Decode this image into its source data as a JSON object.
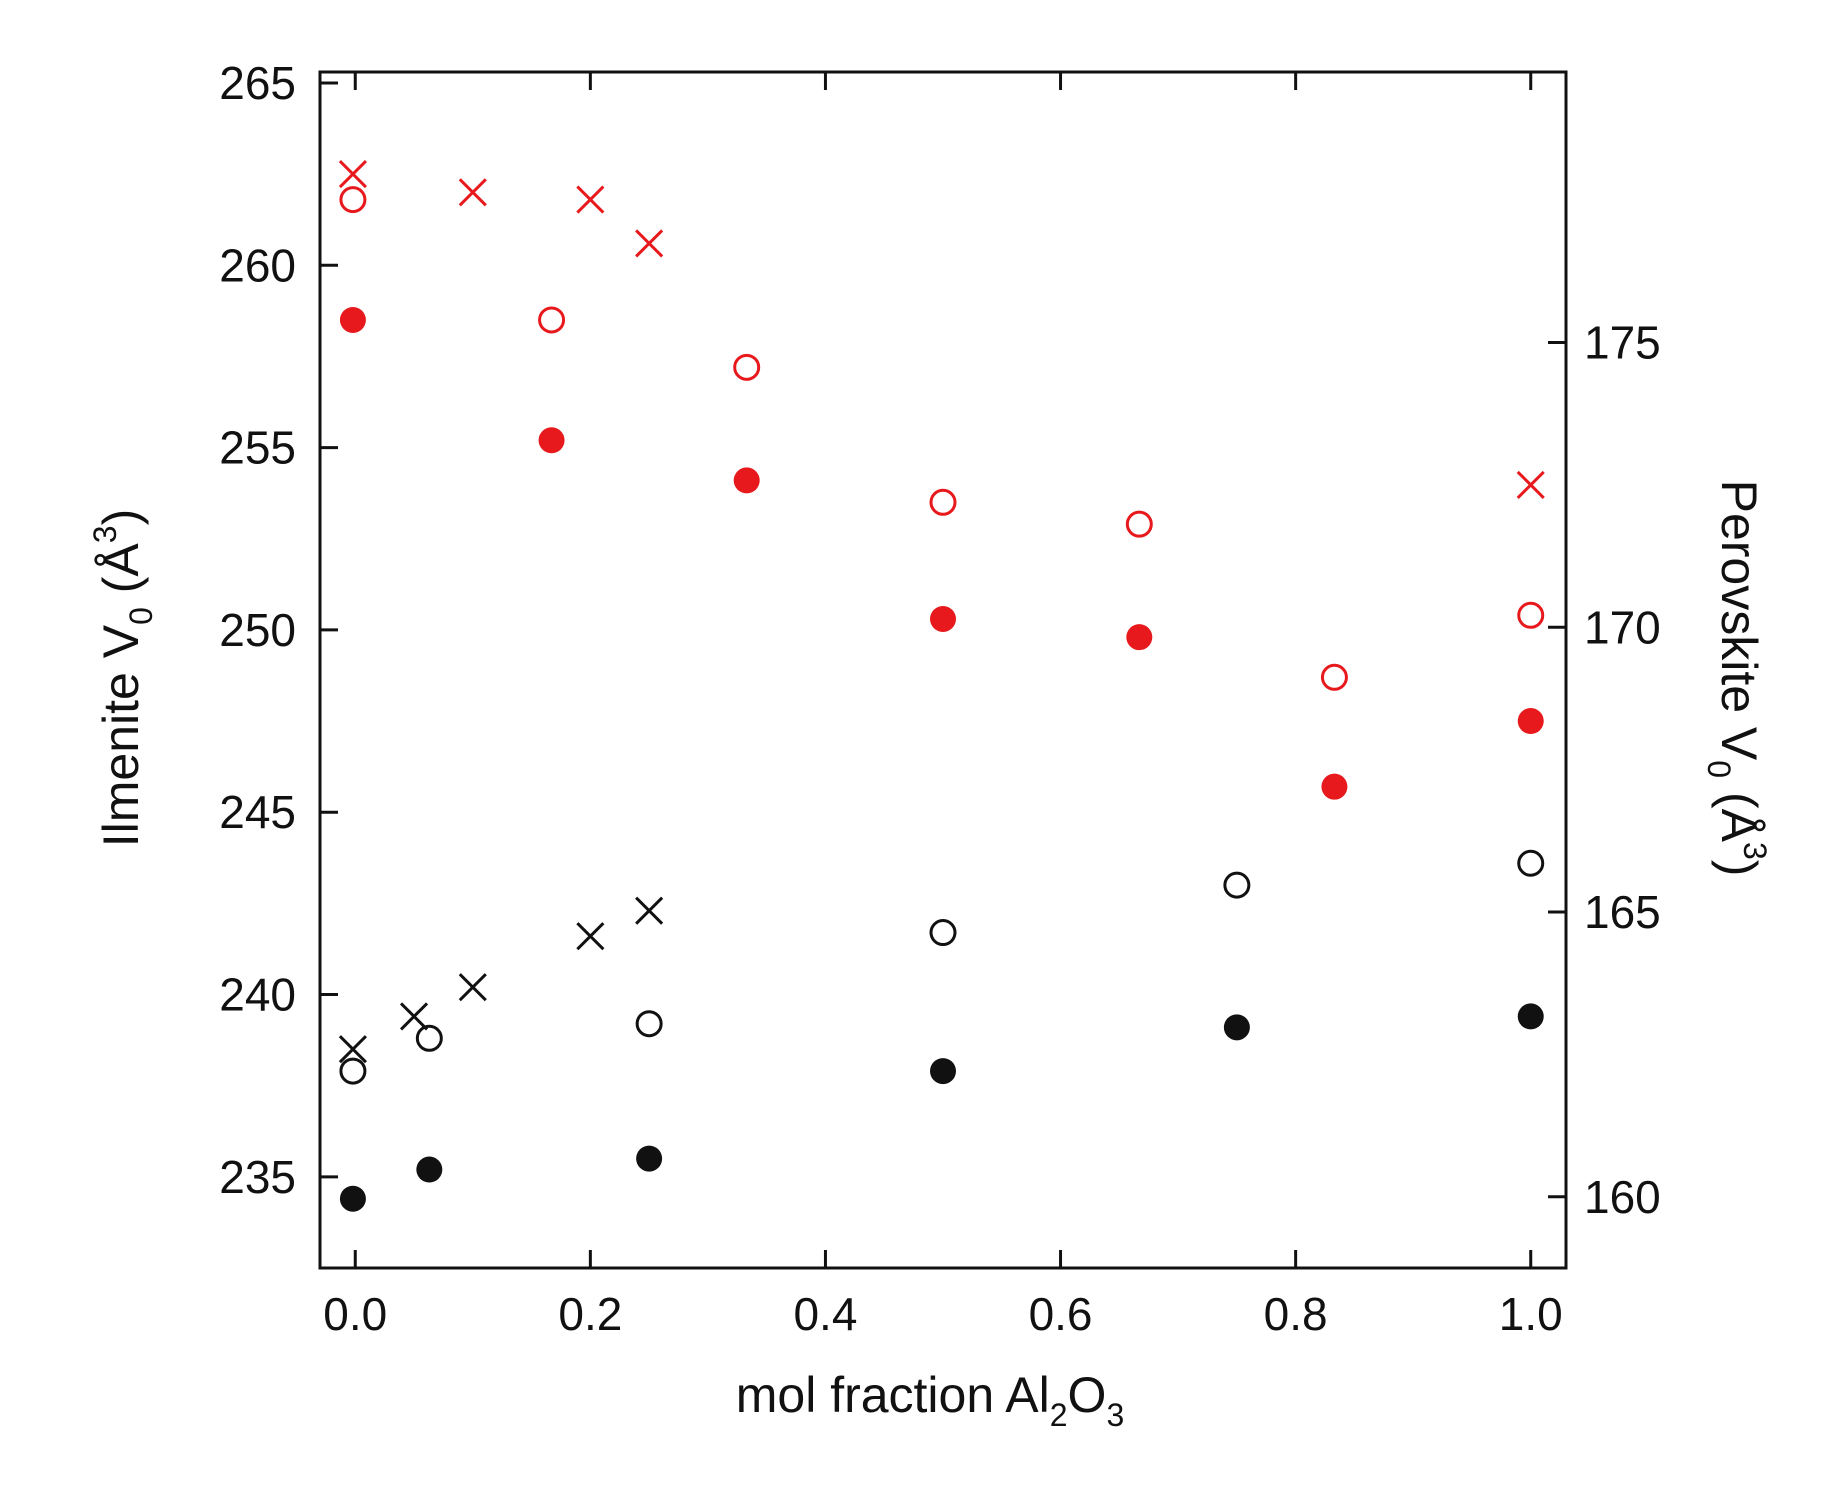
{
  "chart_data": {
    "type": "scatter",
    "x_axis": {
      "label": "mol fraction Al2O3",
      "label_parts": [
        "mol fraction Al",
        "2",
        "O",
        "3"
      ],
      "range": [
        -0.03,
        1.03
      ],
      "ticks": [
        0.0,
        0.2,
        0.4,
        0.6,
        0.8,
        1.0
      ],
      "tick_labels": [
        "0.0",
        "0.2",
        "0.4",
        "0.6",
        "0.8",
        "1.0"
      ]
    },
    "y_axis_left": {
      "label": "Ilmenite V0 (Å3)",
      "label_parts": [
        "Ilmenite V",
        "0",
        " (Å",
        "3",
        ")"
      ],
      "range": [
        232.5,
        265.3
      ],
      "ticks": [
        235,
        240,
        245,
        250,
        255,
        260,
        265
      ],
      "tick_labels": [
        "235",
        "240",
        "245",
        "250",
        "255",
        "260",
        "265"
      ]
    },
    "y_axis_right": {
      "label": "Perovskite V0 (Å3)",
      "label_parts": [
        "Perovskite V",
        "0",
        " (Å",
        "3",
        ")"
      ],
      "range": [
        158.75,
        179.75
      ],
      "ticks": [
        160,
        165,
        170,
        175
      ],
      "tick_labels": [
        "160",
        "165",
        "170",
        "175"
      ]
    },
    "grid": false,
    "series": [
      {
        "axis": "left",
        "color": "#e8191c",
        "marker": "cross",
        "points": [
          [
            -0.002,
            262.5
          ],
          [
            0.1,
            262.0
          ],
          [
            0.2,
            261.8
          ],
          [
            0.25,
            260.6
          ]
        ]
      },
      {
        "axis": "left",
        "color": "#e8191c",
        "marker": "open-circle",
        "points": [
          [
            -0.002,
            261.8
          ],
          [
            0.167,
            258.5
          ],
          [
            0.333,
            257.2
          ],
          [
            0.5,
            253.5
          ],
          [
            0.667,
            252.9
          ],
          [
            0.833,
            248.7
          ],
          [
            1.0,
            250.4
          ]
        ]
      },
      {
        "axis": "left",
        "color": "#e8191c",
        "marker": "filled-circle",
        "points": [
          [
            -0.002,
            258.5
          ],
          [
            0.167,
            255.2
          ],
          [
            0.333,
            254.1
          ],
          [
            0.5,
            250.3
          ],
          [
            0.667,
            249.8
          ],
          [
            0.833,
            245.7
          ],
          [
            1.0,
            247.5
          ]
        ]
      },
      {
        "axis": "right",
        "color": "#e8191c",
        "marker": "cross",
        "points": [
          [
            1.0,
            172.5
          ]
        ]
      },
      {
        "axis": "left",
        "color": "#111111",
        "marker": "cross",
        "points": [
          [
            -0.002,
            238.5
          ],
          [
            0.05,
            239.4
          ],
          [
            0.1,
            240.2
          ],
          [
            0.2,
            241.6
          ],
          [
            0.25,
            242.3
          ]
        ]
      },
      {
        "axis": "left",
        "color": "#111111",
        "marker": "open-circle",
        "points": [
          [
            -0.002,
            237.9
          ],
          [
            0.063,
            238.8
          ],
          [
            0.25,
            239.2
          ],
          [
            0.5,
            241.7
          ],
          [
            0.75,
            243.0
          ],
          [
            1.0,
            243.6
          ]
        ]
      },
      {
        "axis": "left",
        "color": "#111111",
        "marker": "filled-circle",
        "points": [
          [
            -0.002,
            234.4
          ],
          [
            0.063,
            235.2
          ],
          [
            0.25,
            235.5
          ],
          [
            0.5,
            237.9
          ],
          [
            0.75,
            239.1
          ],
          [
            1.0,
            239.4
          ]
        ]
      }
    ]
  }
}
